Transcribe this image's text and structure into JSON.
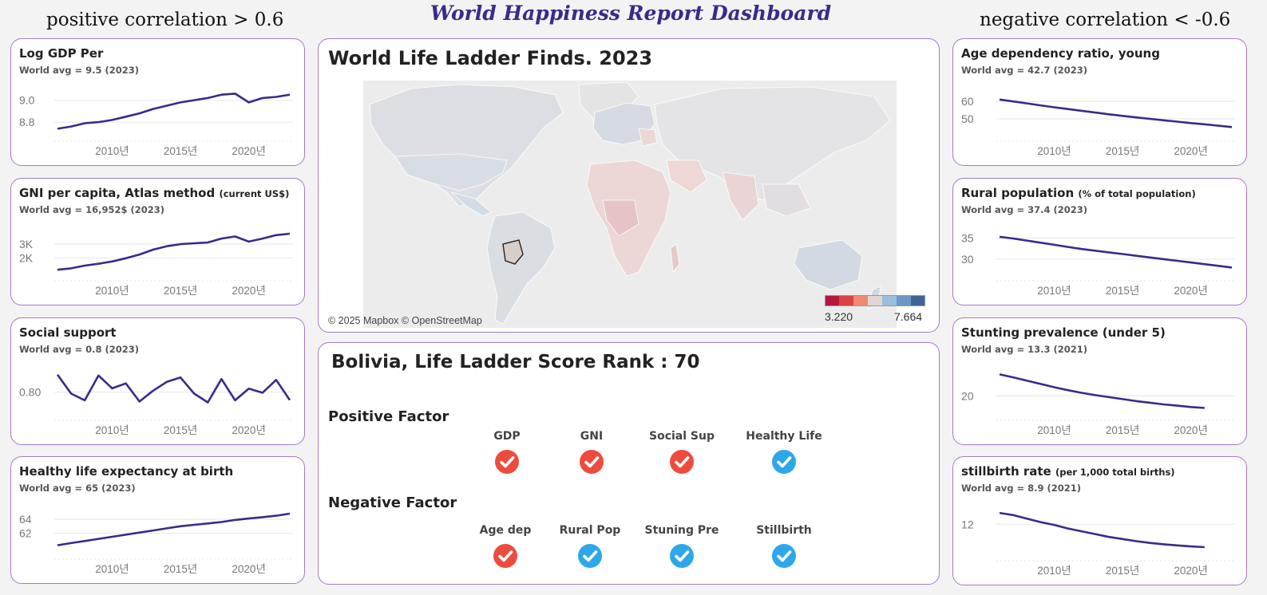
{
  "header": {
    "title": "World Happiness Report Dashboard",
    "left_section": "positive correlation > 0.6",
    "right_section": "negative correlation < -0.6"
  },
  "left_cards": [
    {
      "title": "Log GDP Per",
      "subtitle": "",
      "avg": "World avg = 9.5 (2023)",
      "chart_data": {
        "type": "line",
        "x": [
          2006,
          2007,
          2008,
          2009,
          2010,
          2011,
          2012,
          2013,
          2014,
          2015,
          2016,
          2017,
          2018,
          2019,
          2020,
          2021,
          2022,
          2023
        ],
        "values": [
          8.74,
          8.76,
          8.79,
          8.8,
          8.82,
          8.85,
          8.88,
          8.92,
          8.95,
          8.98,
          9.0,
          9.02,
          9.05,
          9.06,
          8.98,
          9.02,
          9.03,
          9.05
        ],
        "yticks": [
          "9.0",
          "8.8"
        ],
        "ytick_values": [
          9.0,
          8.8
        ],
        "ylim": [
          8.67,
          9.15
        ],
        "xticks": [
          "2010년",
          "2015년",
          "2020년"
        ],
        "color": "#3b2a8a"
      }
    },
    {
      "title": "GNI per capita, Atlas method",
      "subtitle": "(current US$)",
      "avg": "World avg = 16,952$ (2023)",
      "chart_data": {
        "type": "line",
        "x": [
          2006,
          2007,
          2008,
          2009,
          2010,
          2011,
          2012,
          2013,
          2014,
          2015,
          2016,
          2017,
          2018,
          2019,
          2020,
          2021,
          2022,
          2023
        ],
        "values": [
          1150,
          1250,
          1450,
          1580,
          1750,
          1980,
          2250,
          2600,
          2850,
          3000,
          3060,
          3120,
          3400,
          3550,
          3180,
          3400,
          3650,
          3750
        ],
        "yticks": [
          "3K",
          "2K"
        ],
        "ytick_values": [
          3000,
          2000
        ],
        "ylim": [
          700,
          4500
        ],
        "xticks": [
          "2010년",
          "2015년",
          "2020년"
        ],
        "color": "#3b2a8a"
      }
    },
    {
      "title": "Social support",
      "subtitle": "",
      "avg": "World avg = 0.8 (2023)",
      "chart_data": {
        "type": "line",
        "x": [
          2006,
          2007,
          2008,
          2009,
          2010,
          2011,
          2012,
          2013,
          2014,
          2015,
          2016,
          2017,
          2018,
          2019,
          2020,
          2021,
          2022,
          2023
        ],
        "values": [
          0.86,
          0.795,
          0.772,
          0.857,
          0.813,
          0.83,
          0.768,
          0.805,
          0.835,
          0.85,
          0.795,
          0.765,
          0.845,
          0.772,
          0.812,
          0.798,
          0.842,
          0.773
        ],
        "yticks": [
          "0.80"
        ],
        "ytick_values": [
          0.8
        ],
        "ylim": [
          0.72,
          0.9
        ],
        "xticks": [
          "2010년",
          "2015년",
          "2020년"
        ],
        "color": "#3b2a8a"
      }
    },
    {
      "title": "Healthy life expectancy at birth",
      "subtitle": "",
      "avg": "World avg = 65 (2023)",
      "chart_data": {
        "type": "line",
        "x": [
          2006,
          2007,
          2008,
          2009,
          2010,
          2011,
          2012,
          2013,
          2014,
          2015,
          2016,
          2017,
          2018,
          2019,
          2020,
          2021,
          2022,
          2023
        ],
        "values": [
          60.3,
          60.6,
          60.9,
          61.2,
          61.5,
          61.8,
          62.1,
          62.4,
          62.7,
          63.0,
          63.2,
          63.4,
          63.6,
          63.9,
          64.1,
          64.3,
          64.5,
          64.8
        ],
        "yticks": [
          "64",
          "62"
        ],
        "ytick_values": [
          64,
          62
        ],
        "ylim": [
          59.0,
          66.5
        ],
        "xticks": [
          "2010년",
          "2015년",
          "2020년"
        ],
        "color": "#3b2a8a"
      }
    }
  ],
  "right_cards": [
    {
      "title": "Age dependency ratio, young",
      "subtitle": "",
      "avg": "World avg = 42.7 (2023)",
      "chart_data": {
        "type": "line",
        "x": [
          2006,
          2007,
          2008,
          2009,
          2010,
          2011,
          2012,
          2013,
          2014,
          2015,
          2016,
          2017,
          2018,
          2019,
          2020,
          2021,
          2022,
          2023
        ],
        "values": [
          61.0,
          59.9,
          58.8,
          57.7,
          56.6,
          55.6,
          54.6,
          53.6,
          52.6,
          51.7,
          50.8,
          50.0,
          49.2,
          48.4,
          47.6,
          46.9,
          46.1,
          45.3
        ],
        "yticks": [
          "60",
          "50"
        ],
        "ytick_values": [
          60,
          50
        ],
        "ylim": [
          40,
          70
        ],
        "xticks": [
          "2010년",
          "2015년",
          "2020년"
        ],
        "color": "#3b2a8a"
      }
    },
    {
      "title": "Rural population",
      "subtitle": "(% of total population)",
      "avg": "World avg = 37.4 (2023)",
      "chart_data": {
        "type": "line",
        "x": [
          2006,
          2007,
          2008,
          2009,
          2010,
          2011,
          2012,
          2013,
          2014,
          2015,
          2016,
          2017,
          2018,
          2019,
          2020,
          2021,
          2022,
          2023
        ],
        "values": [
          35.3,
          34.9,
          34.4,
          33.9,
          33.4,
          32.9,
          32.4,
          32.0,
          31.6,
          31.2,
          30.8,
          30.4,
          30.0,
          29.6,
          29.2,
          28.8,
          28.4,
          28.0
        ],
        "yticks": [
          "35",
          "30"
        ],
        "ytick_values": [
          35,
          30
        ],
        "ylim": [
          26,
          38.5
        ],
        "xticks": [
          "2010년",
          "2015년",
          "2020년"
        ],
        "color": "#3b2a8a"
      }
    },
    {
      "title": "Stunting prevalence (under 5)",
      "subtitle": "",
      "avg": "World avg = 13.3 (2021)",
      "chart_data": {
        "type": "line",
        "x": [
          2006,
          2007,
          2008,
          2009,
          2010,
          2011,
          2012,
          2013,
          2014,
          2015,
          2016,
          2017,
          2018,
          2019,
          2020,
          2021
        ],
        "values": [
          26.5,
          25.6,
          24.6,
          23.6,
          22.6,
          21.7,
          20.9,
          20.2,
          19.6,
          19.0,
          18.4,
          17.9,
          17.4,
          17.0,
          16.6,
          16.3
        ],
        "yticks": [
          "20"
        ],
        "ytick_values": [
          20
        ],
        "ylim": [
          14,
          30
        ],
        "xticks": [
          "2010년",
          "2015년",
          "2020년"
        ],
        "color": "#3b2a8a"
      }
    },
    {
      "title": "stillbirth rate",
      "subtitle": "(per 1,000 total births)",
      "avg": "World avg = 8.9 (2021)",
      "chart_data": {
        "type": "line",
        "x": [
          2006,
          2007,
          2008,
          2009,
          2010,
          2011,
          2012,
          2013,
          2014,
          2015,
          2016,
          2017,
          2018,
          2019,
          2020,
          2021
        ],
        "values": [
          13.6,
          13.3,
          12.8,
          12.3,
          11.9,
          11.4,
          11.0,
          10.6,
          10.2,
          9.9,
          9.6,
          9.35,
          9.15,
          9.0,
          8.85,
          8.75
        ],
        "yticks": [
          "12"
        ],
        "ytick_values": [
          12
        ],
        "ylim": [
          7.5,
          15.2
        ],
        "xticks": [
          "2010년",
          "2015년",
          "2020년"
        ],
        "color": "#3b2a8a"
      }
    }
  ],
  "map": {
    "title": "World Life Ladder Finds. 2023",
    "attribution": "© 2025 Mapbox © OpenStreetMap",
    "legend_min": "3.220",
    "legend_max": "7.664",
    "legend_colors": [
      "#b5173a",
      "#d9434a",
      "#f08a70",
      "#e2d6d3",
      "#9dbedd",
      "#6c97c7",
      "#3f6595"
    ]
  },
  "rank": {
    "title": "Bolivia, Life Ladder Score Rank : 70",
    "positive_label": "Positive Factor",
    "negative_label": "Negative Factor",
    "positive": [
      {
        "label": "GDP",
        "state": "red"
      },
      {
        "label": "GNI",
        "state": "red"
      },
      {
        "label": "Social Sup",
        "state": "red"
      },
      {
        "label": "Healthy Life",
        "state": "blue"
      }
    ],
    "negative": [
      {
        "label": "Age dep",
        "state": "red"
      },
      {
        "label": "Rural Pop",
        "state": "blue"
      },
      {
        "label": "Stuning Pre",
        "state": "blue"
      },
      {
        "label": "Stillbirth",
        "state": "blue"
      }
    ]
  },
  "colors": {
    "accent": "#3b2a8a",
    "card_border": "#a779c9",
    "check_red": "#ee4b3f",
    "check_blue": "#2ea7ea"
  }
}
